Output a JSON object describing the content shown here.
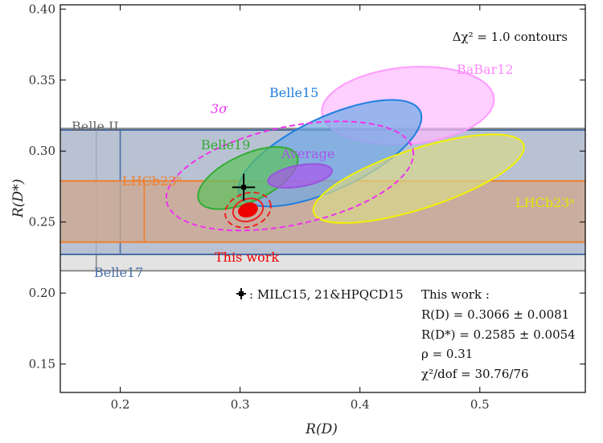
{
  "chart_data": {
    "type": "scatter",
    "title": "",
    "xlabel": "R(D)",
    "ylabel": "R(D*)",
    "xlim": [
      0.15,
      0.588
    ],
    "ylim": [
      0.13,
      0.403
    ],
    "xticks": [
      "0.2",
      "0.3",
      "0.4",
      "0.5"
    ],
    "xtick_values": [
      0.2,
      0.3,
      0.4,
      0.5
    ],
    "yticks": [
      "0.15",
      "0.20",
      "0.25",
      "0.30",
      "0.35",
      "0.40"
    ],
    "ytick_values": [
      0.15,
      0.2,
      0.25,
      0.3,
      0.35,
      0.4
    ],
    "contour_note": "Δχ² = 1.0 contours",
    "bands": [
      {
        "name": "Belle II",
        "y": [
          0.2157,
          0.3159
        ],
        "x_line": 0.18,
        "color": "#8a8a8a",
        "fill": "#dcdcdc"
      },
      {
        "name": "Belle17",
        "y": [
          0.2272,
          0.3148
        ],
        "x_line": 0.2,
        "color": "#4a6fa5",
        "fill": "#a9b7cc"
      },
      {
        "name": "LHCb23ᵇ",
        "y": [
          0.2359,
          0.2789
        ],
        "x_line": 0.22,
        "color": "#f07f2c",
        "fill": "#cfa78e"
      }
    ],
    "ellipses": [
      {
        "name": "BaBar12",
        "center": [
          0.44,
          0.332
        ],
        "radii": [
          0.072,
          0.027
        ],
        "angle_deg": -5,
        "color": "#ff99ff",
        "fill": "#ffbbff",
        "style": "solid"
      },
      {
        "name": "Belle15",
        "center": [
          0.375,
          0.2985
        ],
        "radii": [
          0.083,
          0.0255
        ],
        "angle_deg": -25,
        "color": "#1f7fe0",
        "fill": "#6fa8e6",
        "style": "solid"
      },
      {
        "name": "LHCb23ᵃ",
        "center": [
          0.449,
          0.2805
        ],
        "radii": [
          0.092,
          0.021
        ],
        "angle_deg": -18,
        "color": "#f2f200",
        "fill": "#d7d78a",
        "style": "solid"
      },
      {
        "name": "Belle19",
        "center": [
          0.3065,
          0.281
        ],
        "radii": [
          0.045,
          0.0165
        ],
        "angle_deg": -25,
        "color": "#33aa33",
        "fill": "#5cc25c",
        "style": "solid"
      },
      {
        "name": "Average",
        "center": [
          0.35,
          0.2825
        ],
        "radii": [
          0.027,
          0.0075
        ],
        "angle_deg": -10,
        "color": "#9955dd",
        "fill": "#aa55ee",
        "style": "solid"
      },
      {
        "name": "3σ",
        "center": [
          0.3415,
          0.2825
        ],
        "radii": [
          0.105,
          0.0345
        ],
        "angle_deg": -12,
        "color": "#ee33ee",
        "fill": "none",
        "style": "dashed"
      },
      {
        "name": "This work 2σ",
        "center": [
          0.3066,
          0.2585
        ],
        "radii": [
          0.0195,
          0.0118
        ],
        "angle_deg": -18,
        "color": "#ee2222",
        "fill": "none",
        "style": "dashed"
      },
      {
        "name": "This work 1σ",
        "center": [
          0.3066,
          0.2585
        ],
        "radii": [
          0.0128,
          0.0078
        ],
        "angle_deg": -18,
        "color": "#ee2222",
        "fill": "none",
        "style": "solid"
      },
      {
        "name": "This work",
        "center": [
          0.3066,
          0.2585
        ],
        "radii": [
          0.0078,
          0.0045
        ],
        "angle_deg": -18,
        "color": "#ee0000",
        "fill": "#ee0000",
        "style": "solid"
      }
    ],
    "lattice_point": {
      "x": 0.303,
      "y": 0.2745,
      "xerr": 0.0095,
      "yerr": 0.0095,
      "label": ": MILC15, 21&HPQCD15"
    },
    "labels": {
      "babar12": "BaBar12",
      "belle15": "Belle15",
      "lhcb23a": "LHCb23ᵃ",
      "belle19": "Belle19",
      "average": "Average",
      "sigma3": "3σ",
      "this_work": "This work",
      "belle2": "Belle II",
      "belle17": "Belle17",
      "lhcb23b": "LHCb23ᵇ"
    },
    "result_box": {
      "title": "This work :",
      "rd": "R(D) = 0.3066 ± 0.0081",
      "rdstar": "R(D*) = 0.2585 ± 0.0054",
      "rho": "ρ = 0.31",
      "chi2": "χ²/dof = 30.76/76"
    },
    "grid": false
  }
}
